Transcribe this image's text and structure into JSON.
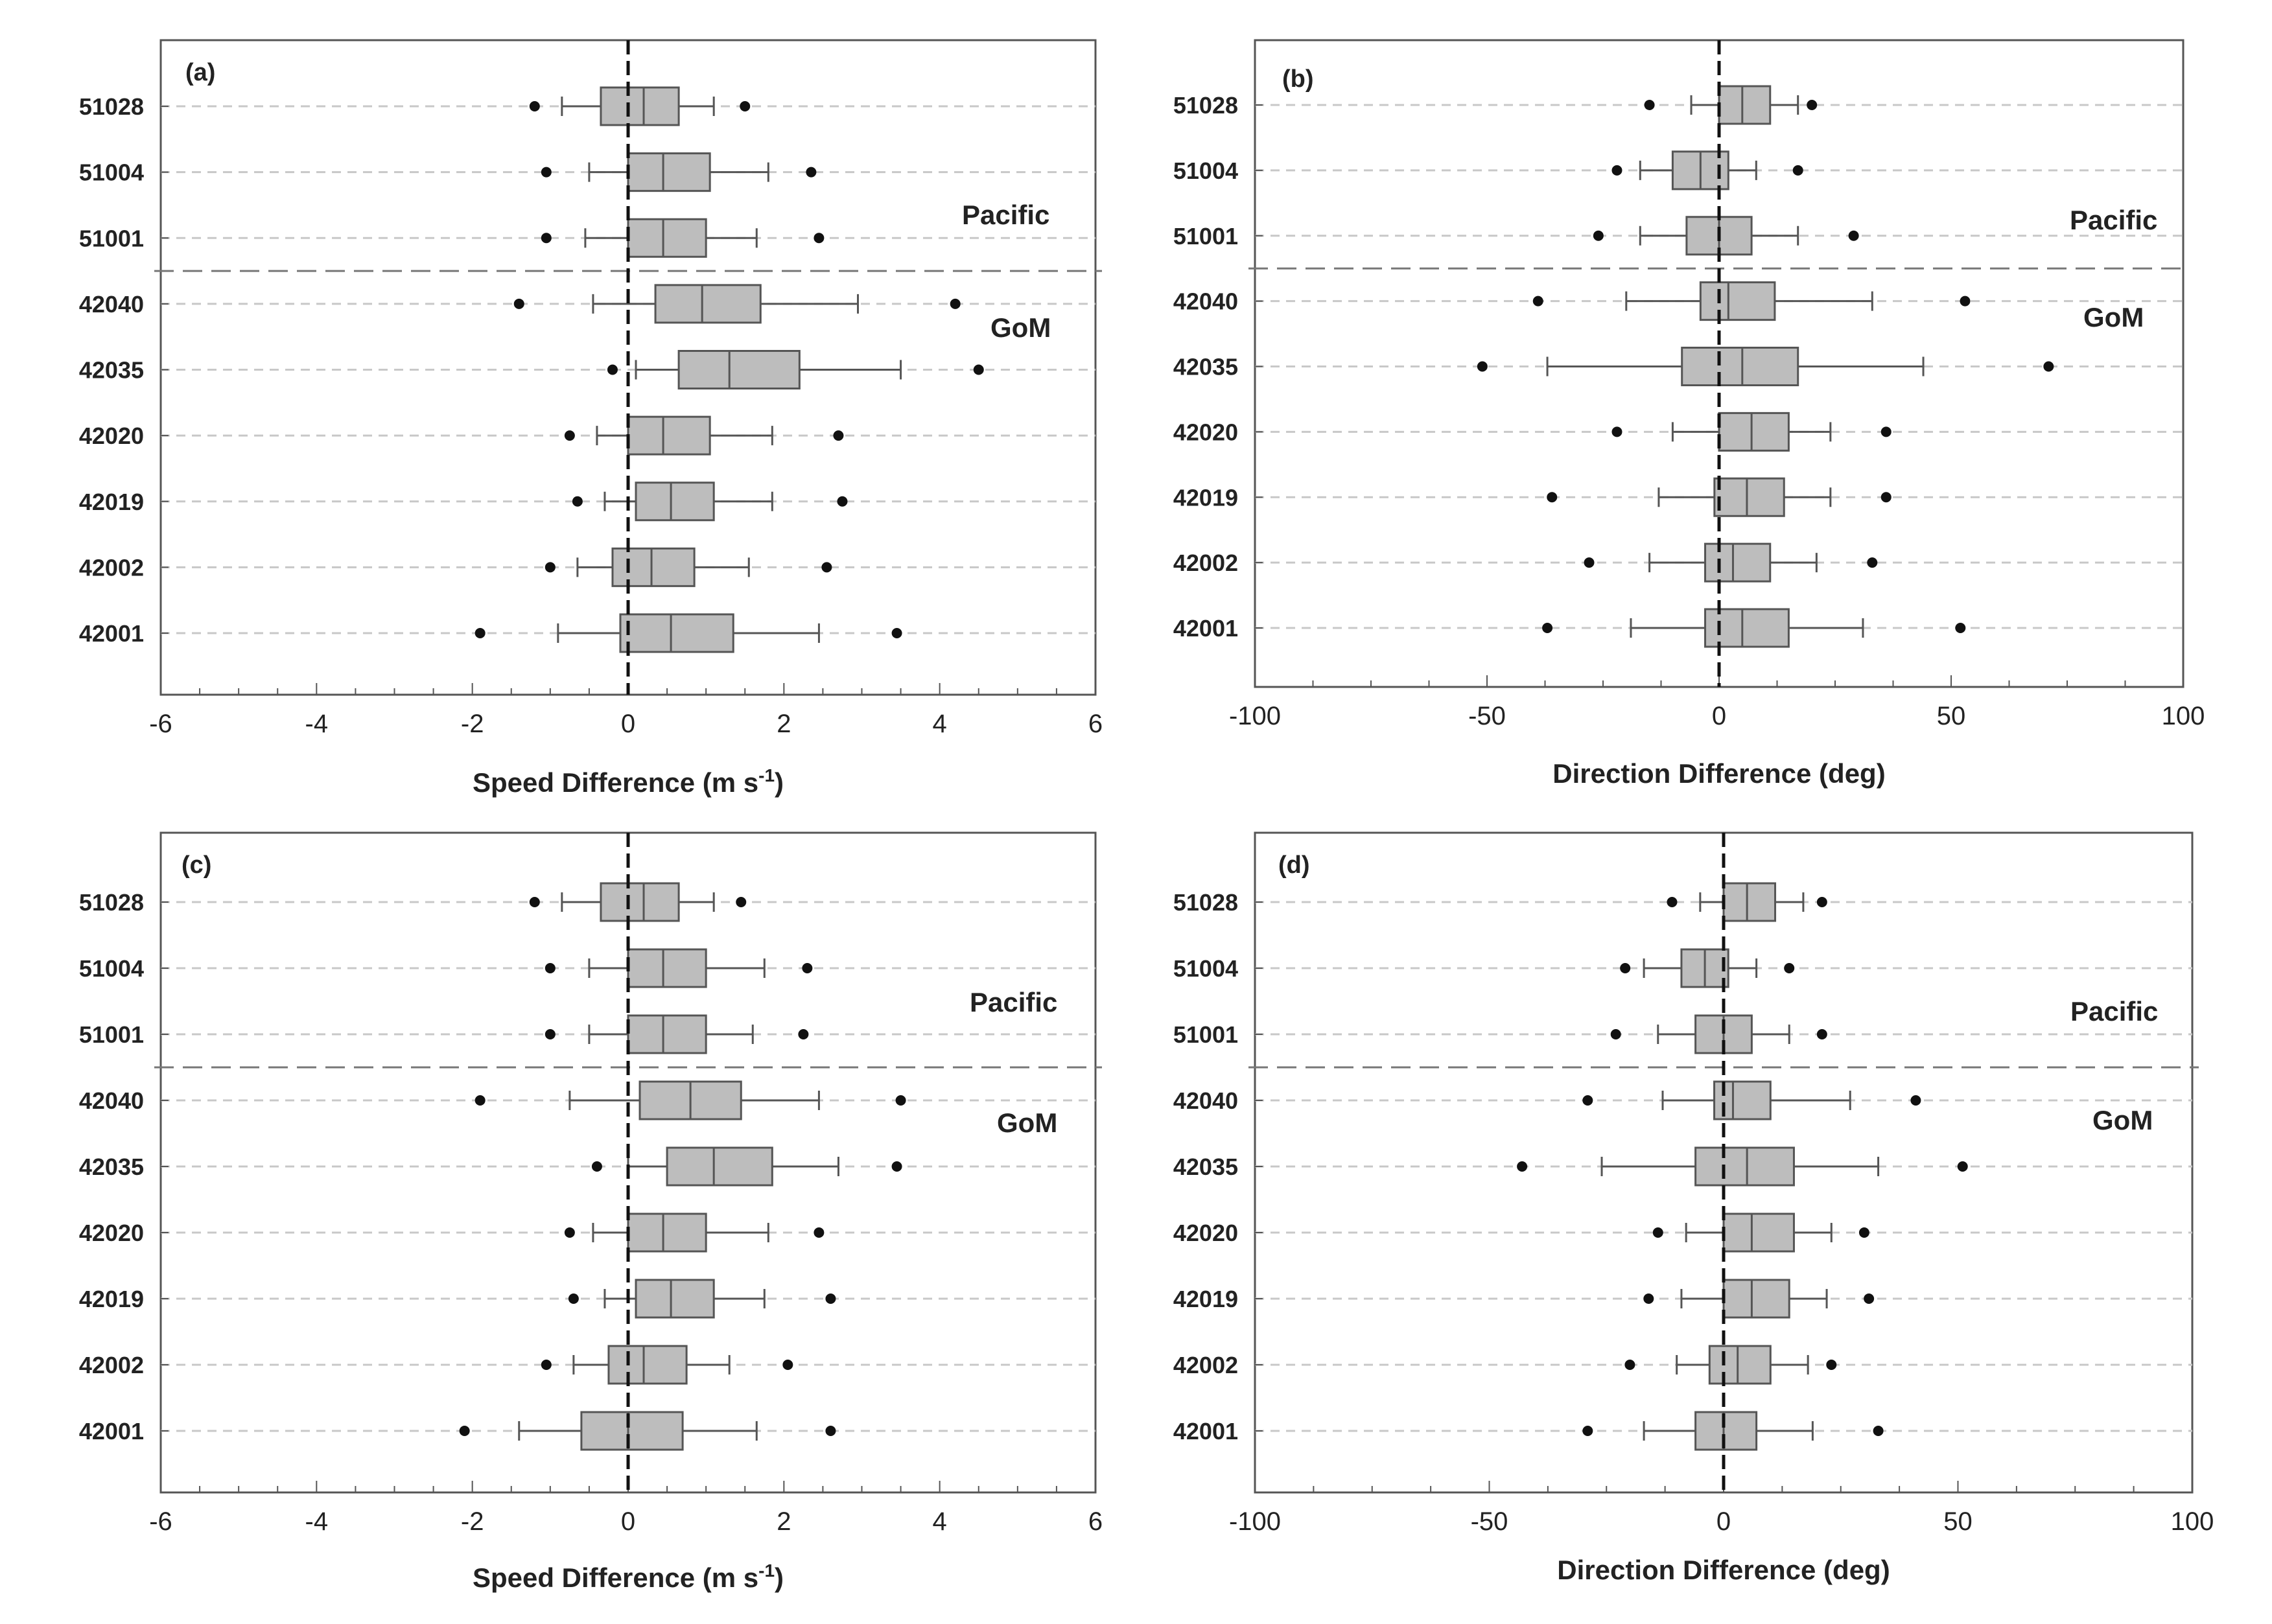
{
  "stations": [
    "51028",
    "51004",
    "51001",
    "42040",
    "42035",
    "42020",
    "42019",
    "42002",
    "42001"
  ],
  "region_labels": {
    "pacific": "Pacific",
    "gom": "GoM"
  },
  "styles": {
    "box_fill": "#bdbdbd",
    "line": "#555555",
    "grid": "#c8c8c8",
    "divider": "#777777"
  },
  "chart_data": [
    {
      "type": "boxplot",
      "panel_label": "(a)",
      "orientation": "horizontal",
      "xlabel": "Speed Difference (m s",
      "xlabel_sup": "-1",
      "xlabel_end": ")",
      "xlim": [
        -6,
        6
      ],
      "xticks": [
        -6,
        -4,
        -2,
        0,
        2,
        4,
        6
      ],
      "xtick_labels": [
        "-6",
        "-4",
        "-2",
        "0",
        "2",
        "4",
        "6"
      ],
      "boxes": [
        {
          "station": "51028",
          "wlo": -0.85,
          "q1": -0.35,
          "med": 0.2,
          "q3": 0.65,
          "whi": 1.1,
          "out_lo": -1.2,
          "out_hi": 1.5
        },
        {
          "station": "51004",
          "wlo": -0.5,
          "q1": 0.0,
          "med": 0.45,
          "q3": 1.05,
          "whi": 1.8,
          "out_lo": -1.05,
          "out_hi": 2.35
        },
        {
          "station": "51001",
          "wlo": -0.55,
          "q1": 0.0,
          "med": 0.45,
          "q3": 1.0,
          "whi": 1.65,
          "out_lo": -1.05,
          "out_hi": 2.45
        },
        {
          "station": "42040",
          "wlo": -0.45,
          "q1": 0.35,
          "med": 0.95,
          "q3": 1.7,
          "whi": 2.95,
          "out_lo": -1.4,
          "out_hi": 4.2
        },
        {
          "station": "42035",
          "wlo": 0.1,
          "q1": 0.65,
          "med": 1.3,
          "q3": 2.2,
          "whi": 3.5,
          "out_lo": -0.2,
          "out_hi": 4.5
        },
        {
          "station": "42020",
          "wlo": -0.4,
          "q1": 0.0,
          "med": 0.45,
          "q3": 1.05,
          "whi": 1.85,
          "out_lo": -0.75,
          "out_hi": 2.7
        },
        {
          "station": "42019",
          "wlo": -0.3,
          "q1": 0.1,
          "med": 0.55,
          "q3": 1.1,
          "whi": 1.85,
          "out_lo": -0.65,
          "out_hi": 2.75
        },
        {
          "station": "42002",
          "wlo": -0.65,
          "q1": -0.2,
          "med": 0.3,
          "q3": 0.85,
          "whi": 1.55,
          "out_lo": -1.0,
          "out_hi": 2.55
        },
        {
          "station": "42001",
          "wlo": -0.9,
          "q1": -0.1,
          "med": 0.55,
          "q3": 1.35,
          "whi": 2.45,
          "out_lo": -1.9,
          "out_hi": 3.45
        }
      ]
    },
    {
      "type": "boxplot",
      "panel_label": "(b)",
      "orientation": "horizontal",
      "xlabel": "Direction Difference (deg)",
      "xlabel_sup": "",
      "xlabel_end": "",
      "xlim": [
        -100,
        100
      ],
      "xticks": [
        -100,
        -50,
        0,
        50,
        100
      ],
      "xtick_labels": [
        "-100",
        "-50",
        "0",
        "50",
        "100"
      ],
      "boxes": [
        {
          "station": "51028",
          "wlo": -6,
          "q1": 0,
          "med": 5,
          "q3": 11,
          "whi": 17,
          "out_lo": -15,
          "out_hi": 20
        },
        {
          "station": "51004",
          "wlo": -17,
          "q1": -10,
          "med": -4,
          "q3": 2,
          "whi": 8,
          "out_lo": -22,
          "out_hi": 17
        },
        {
          "station": "51001",
          "wlo": -17,
          "q1": -7,
          "med": 0,
          "q3": 7,
          "whi": 17,
          "out_lo": -26,
          "out_hi": 29
        },
        {
          "station": "42040",
          "wlo": -20,
          "q1": -4,
          "med": 2,
          "q3": 12,
          "whi": 33,
          "out_lo": -39,
          "out_hi": 53
        },
        {
          "station": "42035",
          "wlo": -37,
          "q1": -8,
          "med": 5,
          "q3": 17,
          "whi": 44,
          "out_lo": -51,
          "out_hi": 71
        },
        {
          "station": "42020",
          "wlo": -10,
          "q1": 0,
          "med": 7,
          "q3": 15,
          "whi": 24,
          "out_lo": -22,
          "out_hi": 36
        },
        {
          "station": "42019",
          "wlo": -13,
          "q1": -1,
          "med": 6,
          "q3": 14,
          "whi": 24,
          "out_lo": -36,
          "out_hi": 36
        },
        {
          "station": "42002",
          "wlo": -15,
          "q1": -3,
          "med": 3,
          "q3": 11,
          "whi": 21,
          "out_lo": -28,
          "out_hi": 33
        },
        {
          "station": "42001",
          "wlo": -19,
          "q1": -3,
          "med": 5,
          "q3": 15,
          "whi": 31,
          "out_lo": -37,
          "out_hi": 52
        }
      ]
    },
    {
      "type": "boxplot",
      "panel_label": "(c)",
      "orientation": "horizontal",
      "xlabel": "Speed Difference (m s",
      "xlabel_sup": "-1",
      "xlabel_end": ")",
      "xlim": [
        -6,
        6
      ],
      "xticks": [
        -6,
        -4,
        -2,
        0,
        2,
        4,
        6
      ],
      "xtick_labels": [
        "-6",
        "-4",
        "-2",
        "0",
        "2",
        "4",
        "6"
      ],
      "boxes": [
        {
          "station": "51028",
          "wlo": -0.85,
          "q1": -0.35,
          "med": 0.2,
          "q3": 0.65,
          "whi": 1.1,
          "out_lo": -1.2,
          "out_hi": 1.45
        },
        {
          "station": "51004",
          "wlo": -0.5,
          "q1": 0.0,
          "med": 0.45,
          "q3": 1.0,
          "whi": 1.75,
          "out_lo": -1.0,
          "out_hi": 2.3
        },
        {
          "station": "51001",
          "wlo": -0.5,
          "q1": 0.0,
          "med": 0.45,
          "q3": 1.0,
          "whi": 1.6,
          "out_lo": -1.0,
          "out_hi": 2.25
        },
        {
          "station": "42040",
          "wlo": -0.75,
          "q1": 0.15,
          "med": 0.8,
          "q3": 1.45,
          "whi": 2.45,
          "out_lo": -1.9,
          "out_hi": 3.5
        },
        {
          "station": "42035",
          "wlo": 0.0,
          "q1": 0.5,
          "med": 1.1,
          "q3": 1.85,
          "whi": 2.7,
          "out_lo": -0.4,
          "out_hi": 3.45
        },
        {
          "station": "42020",
          "wlo": -0.45,
          "q1": 0.0,
          "med": 0.45,
          "q3": 1.0,
          "whi": 1.8,
          "out_lo": -0.75,
          "out_hi": 2.45
        },
        {
          "station": "42019",
          "wlo": -0.3,
          "q1": 0.1,
          "med": 0.55,
          "q3": 1.1,
          "whi": 1.75,
          "out_lo": -0.7,
          "out_hi": 2.6
        },
        {
          "station": "42002",
          "wlo": -0.7,
          "q1": -0.25,
          "med": 0.2,
          "q3": 0.75,
          "whi": 1.3,
          "out_lo": -1.05,
          "out_hi": 2.05
        },
        {
          "station": "42001",
          "wlo": -1.4,
          "q1": -0.6,
          "med": 0.0,
          "q3": 0.7,
          "whi": 1.65,
          "out_lo": -2.1,
          "out_hi": 2.6
        }
      ]
    },
    {
      "type": "boxplot",
      "panel_label": "(d)",
      "orientation": "horizontal",
      "xlabel": "Direction Difference (deg)",
      "xlabel_sup": "",
      "xlabel_end": "",
      "xlim": [
        -100,
        100
      ],
      "xticks": [
        -100,
        -50,
        0,
        50,
        100
      ],
      "xtick_labels": [
        "-100",
        "-50",
        "0",
        "50",
        "100"
      ],
      "boxes": [
        {
          "station": "51028",
          "wlo": -5,
          "q1": 0,
          "med": 5,
          "q3": 11,
          "whi": 17,
          "out_lo": -11,
          "out_hi": 21
        },
        {
          "station": "51004",
          "wlo": -17,
          "q1": -9,
          "med": -4,
          "q3": 1,
          "whi": 7,
          "out_lo": -21,
          "out_hi": 14
        },
        {
          "station": "51001",
          "wlo": -14,
          "q1": -6,
          "med": 0,
          "q3": 6,
          "whi": 14,
          "out_lo": -23,
          "out_hi": 21
        },
        {
          "station": "42040",
          "wlo": -13,
          "q1": -2,
          "med": 2,
          "q3": 10,
          "whi": 27,
          "out_lo": -29,
          "out_hi": 41
        },
        {
          "station": "42035",
          "wlo": -26,
          "q1": -6,
          "med": 5,
          "q3": 15,
          "whi": 33,
          "out_lo": -43,
          "out_hi": 51
        },
        {
          "station": "42020",
          "wlo": -8,
          "q1": 0,
          "med": 6,
          "q3": 15,
          "whi": 23,
          "out_lo": -14,
          "out_hi": 30
        },
        {
          "station": "42019",
          "wlo": -9,
          "q1": 0,
          "med": 6,
          "q3": 14,
          "whi": 22,
          "out_lo": -16,
          "out_hi": 31
        },
        {
          "station": "42002",
          "wlo": -10,
          "q1": -3,
          "med": 3,
          "q3": 10,
          "whi": 18,
          "out_lo": -20,
          "out_hi": 23
        },
        {
          "station": "42001",
          "wlo": -17,
          "q1": -6,
          "med": 0,
          "q3": 7,
          "whi": 19,
          "out_lo": -29,
          "out_hi": 33
        }
      ]
    }
  ]
}
